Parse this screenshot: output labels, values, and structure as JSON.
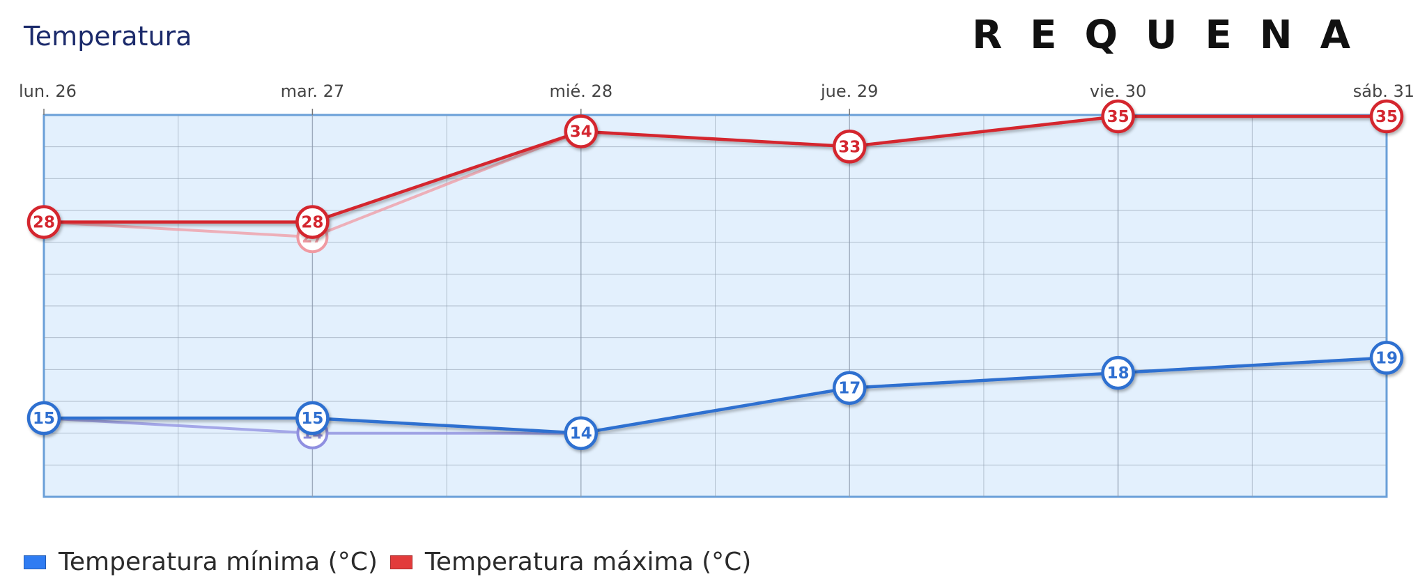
{
  "header": {
    "title": "Temperatura",
    "location": "REQUENA"
  },
  "colors": {
    "min_series": "#2f6fd0",
    "max_series": "#d4262f",
    "plot_background": "#e3f0fd",
    "plot_border": "#6a9fd8",
    "grid": "#8c9aac"
  },
  "legend": {
    "items": [
      {
        "label": "Temperatura mínima (°C)",
        "color": "#2f7cf2"
      },
      {
        "label": "Temperatura máxima (°C)",
        "color": "#e23b3b"
      }
    ],
    "placement": "bottom-left"
  },
  "chart_data": {
    "type": "line",
    "title": "Temperatura",
    "categories": [
      "lun. 26",
      "mar. 27",
      "mié. 28",
      "jue. 29",
      "vie. 30",
      "sáb. 31"
    ],
    "x_axis_position": "top",
    "ylim": [
      12,
      35
    ],
    "grid": true,
    "series": [
      {
        "name": "Temperatura mínima (°C)",
        "values": [
          15,
          15,
          14,
          17,
          18,
          19
        ],
        "color": "#2f6fd0"
      },
      {
        "name": "Temperatura máxima (°C)",
        "values": [
          28,
          28,
          34,
          33,
          35,
          35
        ],
        "color": "#d4262f"
      }
    ],
    "ghost_series": [
      {
        "values": [
          15,
          14,
          14,
          17,
          18,
          19
        ],
        "color": "#8f8fe0"
      },
      {
        "values": [
          28,
          27,
          34,
          33,
          35,
          35
        ],
        "color": "#f09aa2"
      }
    ]
  }
}
